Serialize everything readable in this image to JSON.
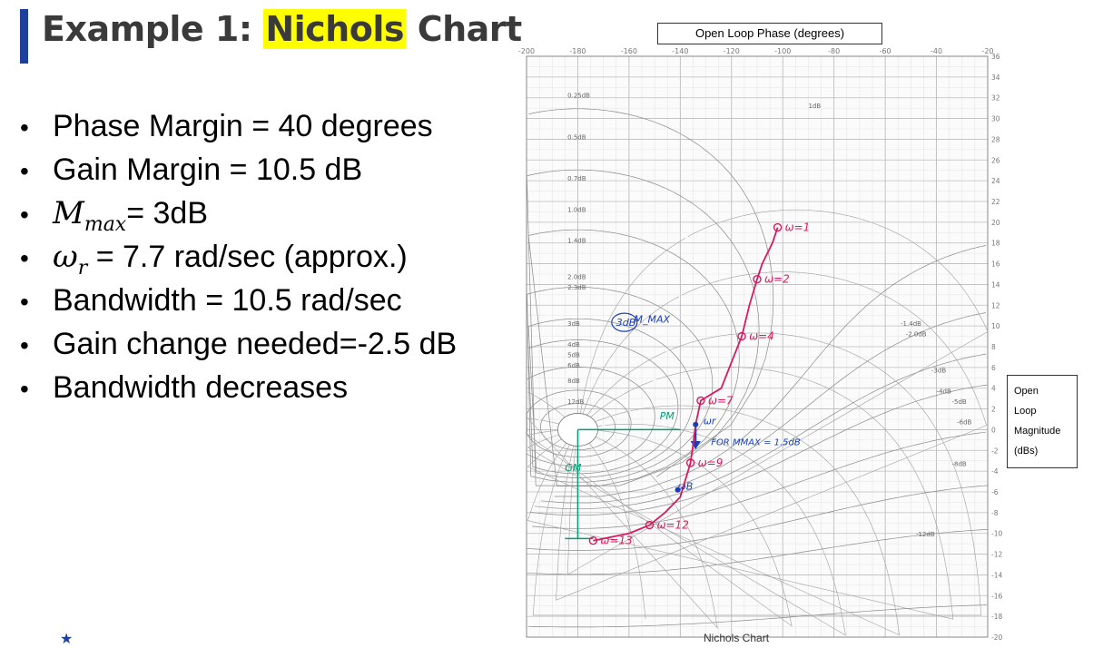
{
  "title": {
    "prefix": "Example 1: ",
    "highlight": "Nichols",
    "suffix": " Chart"
  },
  "bullets": [
    {
      "id": "pm",
      "text": "Phase Margin = 40 degrees"
    },
    {
      "id": "gm",
      "text": "Gain Margin = 10.5 dB"
    },
    {
      "id": "mmax",
      "sym": "M",
      "sub": "max",
      "text": "= 3dB"
    },
    {
      "id": "wr",
      "sym": "ω",
      "sub": "r",
      "text": " = 7.7 rad/sec (approx.)"
    },
    {
      "id": "bw",
      "text": "Bandwidth = 10.5 rad/sec"
    },
    {
      "id": "gc",
      "text": "Gain change needed=-2.5 dB"
    },
    {
      "id": "bwd",
      "text": "Bandwidth decreases"
    }
  ],
  "axis_labels": {
    "phase": "Open Loop Phase (degrees)",
    "mag_lines": [
      "Open",
      "Loop",
      "Magnitude",
      "(dBs)"
    ],
    "caption": "Nichols Chart"
  },
  "chart_data": {
    "type": "line",
    "title": "Nichols Chart",
    "xlabel": "Open Loop Phase (degrees)",
    "ylabel": "Open Loop Magnitude (dBs)",
    "xlim": [
      -200,
      -20
    ],
    "ylim": [
      -20,
      36
    ],
    "x_ticks": [
      -200,
      -180,
      -160,
      -140,
      -120,
      -100,
      -80,
      -60,
      -40,
      -20
    ],
    "y_ticks": [
      36,
      34,
      32,
      30,
      28,
      26,
      24,
      22,
      20,
      18,
      16,
      14,
      12,
      10,
      8,
      6,
      4,
      2,
      0,
      -2,
      -4,
      -6,
      -8,
      -10,
      -12,
      -14,
      -16,
      -18,
      -20
    ],
    "curve_color": "#d81b60",
    "series": [
      {
        "values": [
          {
            "x": -102,
            "y": 19.5,
            "label": "ω=1"
          },
          {
            "x": -104,
            "y": 18
          },
          {
            "x": -108,
            "y": 16
          },
          {
            "x": -110,
            "y": 14.5,
            "label": "ω=2"
          },
          {
            "x": -113,
            "y": 12
          },
          {
            "x": -116,
            "y": 9,
            "label": "ω=4"
          },
          {
            "x": -120,
            "y": 6.5
          },
          {
            "x": -124,
            "y": 4
          },
          {
            "x": -132,
            "y": 2.8,
            "label": "ω=7"
          },
          {
            "x": -134,
            "y": 0.5
          },
          {
            "x": -135,
            "y": -1.5
          },
          {
            "x": -136,
            "y": -3.2,
            "label": "ω=9"
          },
          {
            "x": -140,
            "y": -6.5
          },
          {
            "x": -146,
            "y": -8
          },
          {
            "x": -152,
            "y": -9.2,
            "label": "ω=12"
          },
          {
            "x": -160,
            "y": -10
          },
          {
            "x": -174,
            "y": -10.7,
            "label": "ω=13"
          }
        ]
      }
    ],
    "annotations": [
      {
        "text": "M_MAX",
        "x": -158,
        "y": 10.3
      },
      {
        "text": "3dB",
        "x": -165,
        "y": 10,
        "circled": true
      },
      {
        "text": "PM",
        "x": -148,
        "y": 1
      },
      {
        "text": "GM",
        "x": -185,
        "y": -4
      },
      {
        "text": "ωr",
        "x": -131,
        "y": 0.5
      },
      {
        "text": "FOR MMAX = 1.5dB",
        "x": -128,
        "y": -1.5
      },
      {
        "text": "ωB",
        "x": -141,
        "y": -5.8
      }
    ],
    "contour_labels_left": [
      "0.25dB",
      "0.5dB",
      "0.7dB",
      "1.0dB",
      "1.4dB",
      "2.0dB",
      "2.3dB",
      "3dB",
      "4dB",
      "5dB",
      "6dB",
      "8dB",
      "12dB"
    ],
    "contour_labels_right": [
      "1dB",
      "-1.4dB",
      "-2.0dB",
      "-3dB",
      "-4dB",
      "-5dB",
      "-6dB",
      "-8dB",
      "-12dB"
    ],
    "grid": true
  }
}
